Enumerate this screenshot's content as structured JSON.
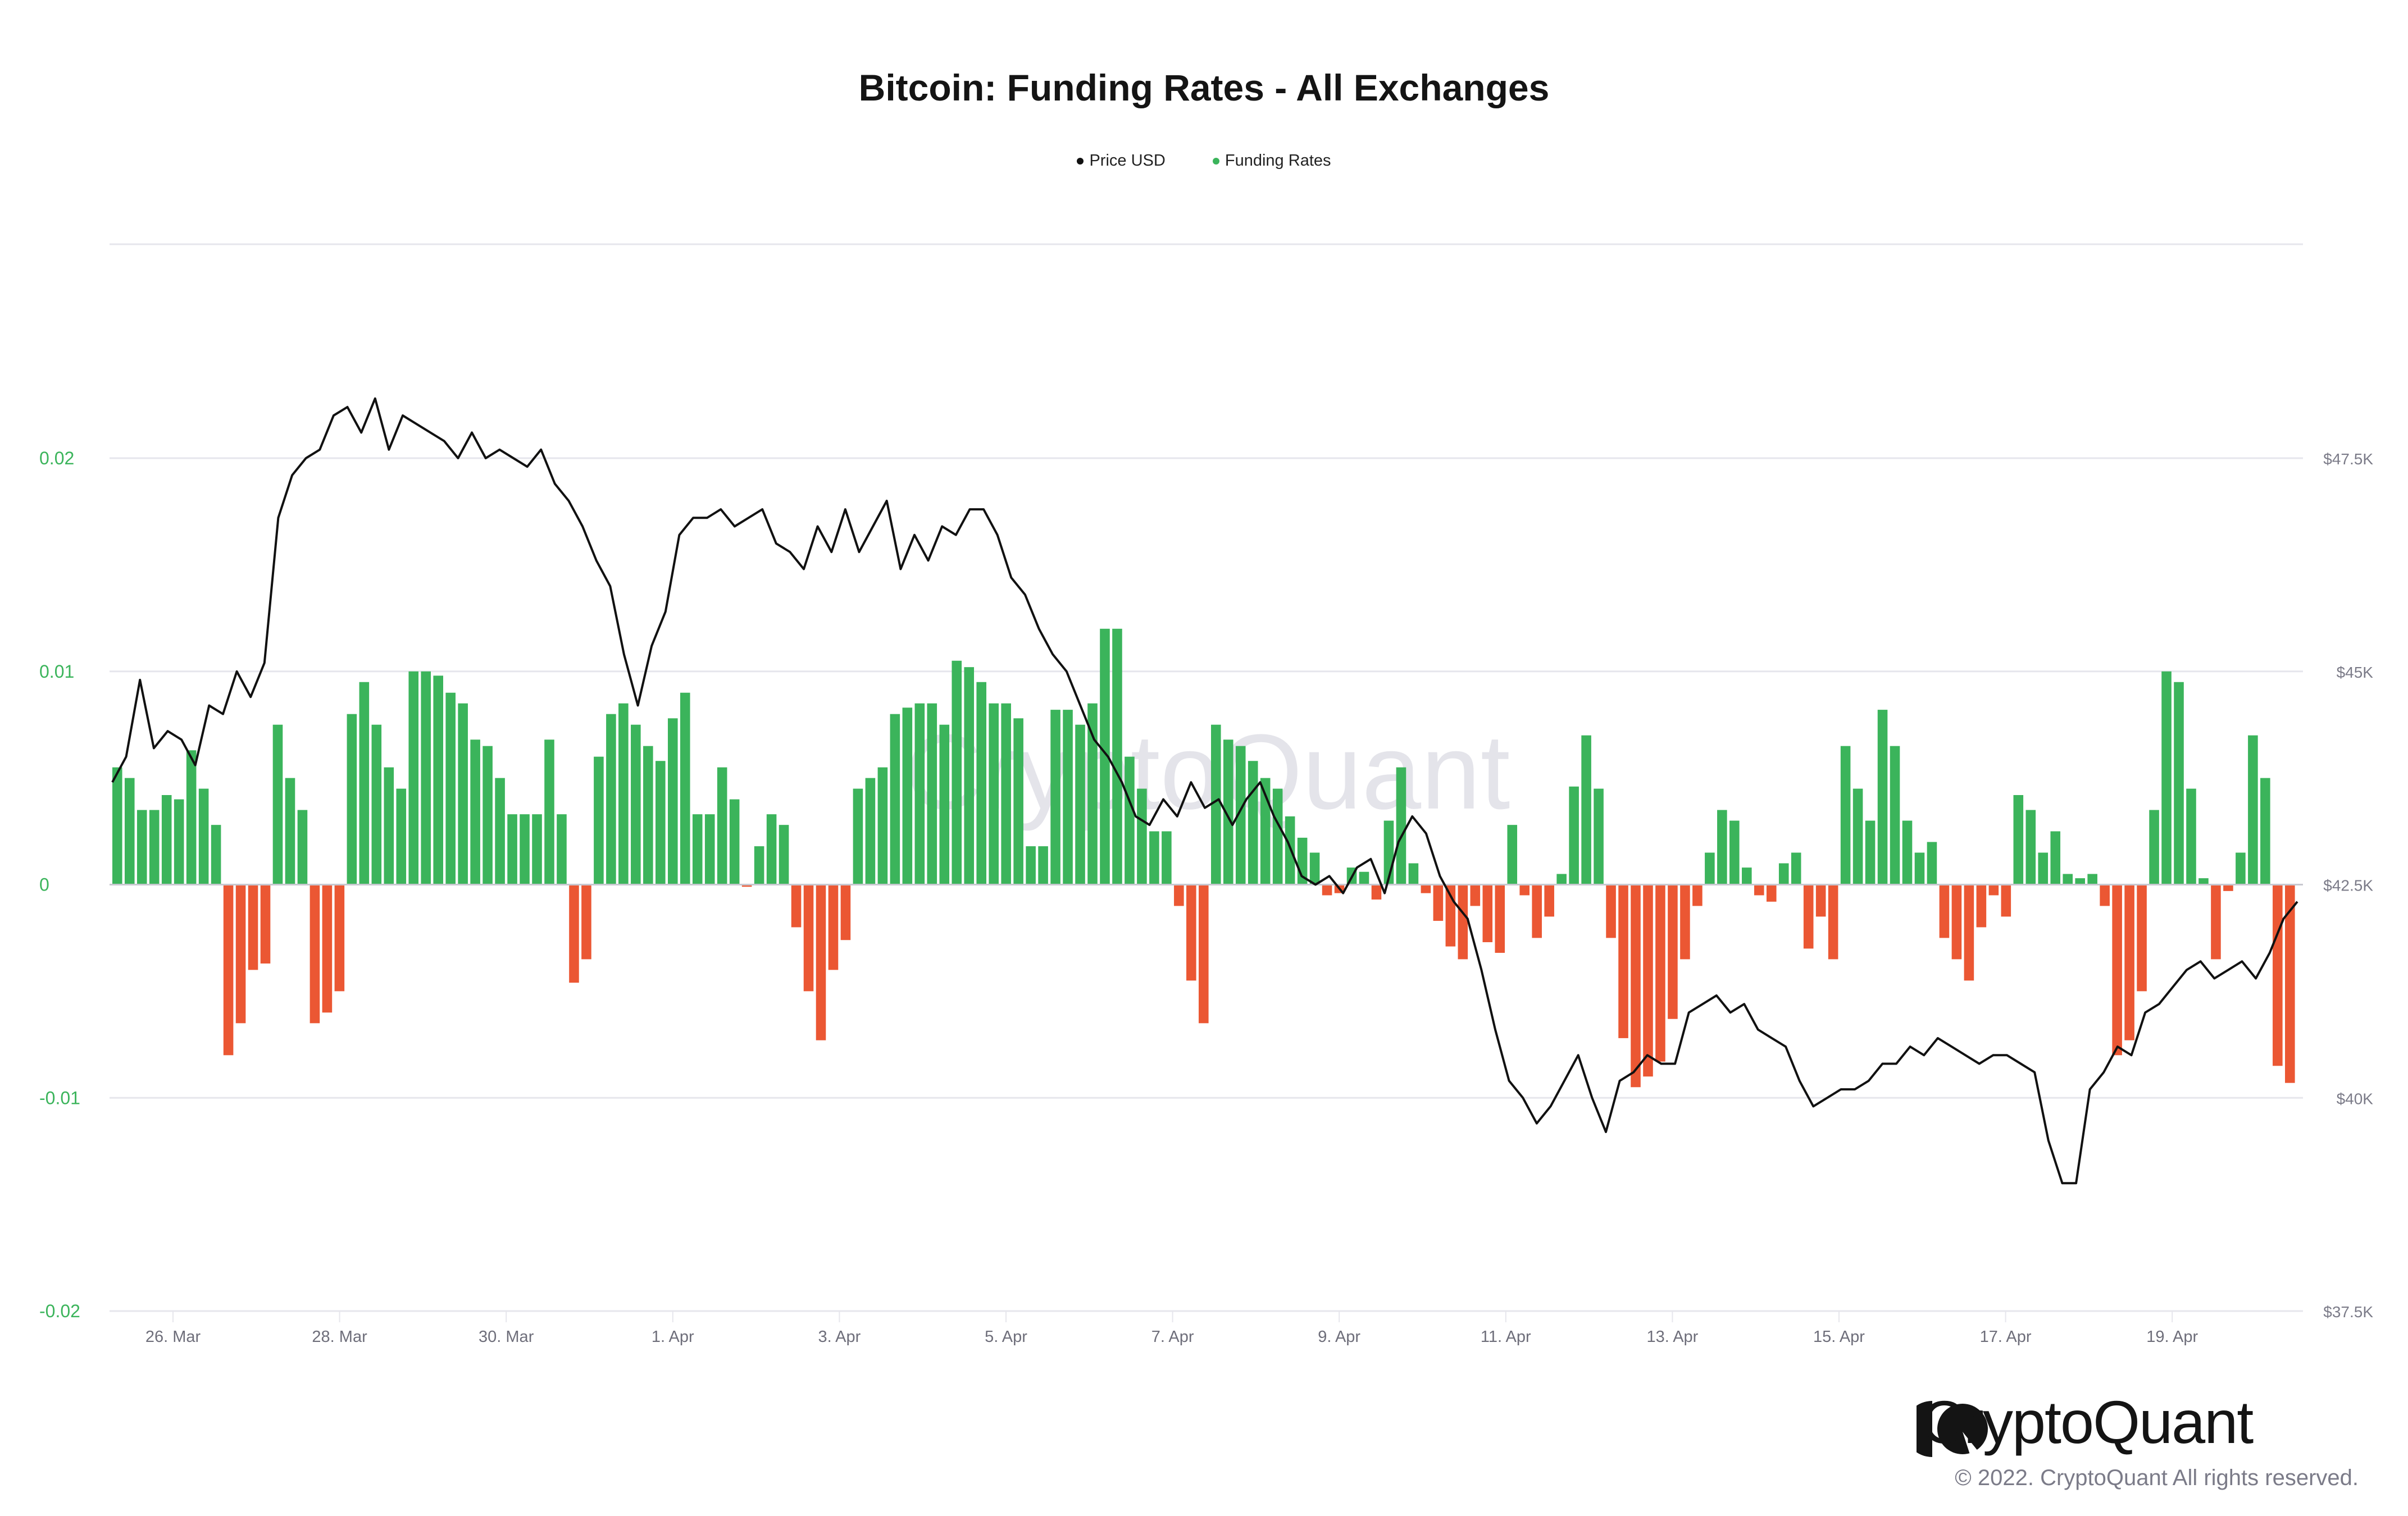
{
  "chart_data": {
    "type": "bar+line",
    "title": "Bitcoin: Funding Rates - All Exchanges",
    "legend": [
      {
        "name": "Price USD",
        "color": "#111111"
      },
      {
        "name": "Funding Rates",
        "color": "#3BB45B"
      }
    ],
    "legend_placement": "top-center",
    "x_tick_labels": [
      "26. Mar",
      "28. Mar",
      "30. Mar",
      "1. Apr",
      "3. Apr",
      "5. Apr",
      "7. Apr",
      "9. Apr",
      "11. Apr",
      "13. Apr",
      "15. Apr",
      "17. Apr",
      "19. Apr"
    ],
    "x_range_days": [
      -0.7,
      25.6
    ],
    "y_left": {
      "label": "Funding Rates",
      "ticks": [
        "0.02",
        "0.01",
        "0",
        "-0.01",
        "-0.02"
      ],
      "range": [
        -0.02,
        0.02
      ],
      "color": "#3BB45B"
    },
    "y_right": {
      "label": "Price USD",
      "ticks": [
        "$47.5K",
        "$45K",
        "$42.5K",
        "$40K",
        "$37.5K"
      ],
      "range": [
        37500,
        47500
      ],
      "color": "#7b7b88"
    },
    "grid": true,
    "colors": {
      "positive": "#3BB45B",
      "negative": "#EB5733",
      "price": "#111111",
      "grid": "#e6e6ec"
    },
    "funding_rates": [
      0.0055,
      0.005,
      0.0035,
      0.0035,
      0.0042,
      0.004,
      0.0063,
      0.0045,
      0.0028,
      -0.008,
      -0.0065,
      -0.004,
      -0.0037,
      0.0075,
      0.005,
      0.0035,
      -0.0065,
      -0.006,
      -0.005,
      0.008,
      0.0095,
      0.0075,
      0.0055,
      0.0045,
      0.01,
      0.01,
      0.0098,
      0.009,
      0.0085,
      0.0068,
      0.0065,
      0.005,
      0.0033,
      0.0033,
      0.0033,
      0.0068,
      0.0033,
      -0.0046,
      -0.0035,
      0.006,
      0.008,
      0.0085,
      0.0075,
      0.0065,
      0.0058,
      0.0078,
      0.009,
      0.0033,
      0.0033,
      0.0055,
      0.004,
      -0.0001,
      0.0018,
      0.0033,
      0.0028,
      -0.002,
      -0.005,
      -0.0073,
      -0.004,
      -0.0026,
      0.0045,
      0.005,
      0.0055,
      0.008,
      0.0083,
      0.0085,
      0.0085,
      0.0075,
      0.0105,
      0.0102,
      0.0095,
      0.0085,
      0.0085,
      0.0078,
      0.0018,
      0.0018,
      0.0082,
      0.0082,
      0.0075,
      0.0085,
      0.012,
      0.012,
      0.006,
      0.0045,
      0.0025,
      0.0025,
      -0.001,
      -0.0045,
      -0.0065,
      0.0075,
      0.0068,
      0.0065,
      0.0058,
      0.005,
      0.0045,
      0.0032,
      0.0022,
      0.0015,
      -0.0005,
      -0.0004,
      0.0008,
      0.0006,
      -0.0007,
      0.003,
      0.0055,
      0.001,
      -0.0004,
      -0.0017,
      -0.0029,
      -0.0035,
      -0.001,
      -0.0027,
      -0.0032,
      0.0028,
      -0.0005,
      -0.0025,
      -0.0015,
      0.0005,
      0.0046,
      0.007,
      0.0045,
      -0.0025,
      -0.0072,
      -0.0095,
      -0.009,
      -0.0083,
      -0.0063,
      -0.0035,
      -0.001,
      0.0015,
      0.0035,
      0.003,
      0.0008,
      -0.0005,
      -0.0008,
      0.001,
      0.0015,
      -0.003,
      -0.0015,
      -0.0035,
      0.0065,
      0.0045,
      0.003,
      0.0082,
      0.0065,
      0.003,
      0.0015,
      0.002,
      -0.0025,
      -0.0035,
      -0.0045,
      -0.002,
      -0.0005,
      -0.0015,
      0.0042,
      0.0035,
      0.0015,
      0.0025,
      0.0005,
      0.0003,
      0.0005,
      -0.001,
      -0.008,
      -0.0073,
      -0.005,
      0.0035,
      0.01,
      0.0095,
      0.0045,
      0.0003,
      -0.0035,
      -0.0003,
      0.0015,
      0.007,
      0.005,
      -0.0085,
      -0.0093
    ],
    "price_usd": [
      43700,
      44000,
      44900,
      44100,
      44300,
      44200,
      43900,
      44600,
      44500,
      45000,
      44700,
      45100,
      46800,
      47300,
      47500,
      47600,
      48000,
      48100,
      47800,
      48200,
      47600,
      48000,
      47900,
      47800,
      47700,
      47500,
      47800,
      47500,
      47600,
      47500,
      47400,
      47600,
      47200,
      47000,
      46700,
      46300,
      46000,
      45200,
      44600,
      45300,
      45700,
      46600,
      46800,
      46800,
      46900,
      46700,
      46800,
      46900,
      46500,
      46400,
      46200,
      46700,
      46400,
      46900,
      46400,
      46700,
      47000,
      46200,
      46600,
      46300,
      46700,
      46600,
      46900,
      46900,
      46600,
      46100,
      45900,
      45500,
      45200,
      45000,
      44600,
      44200,
      44000,
      43700,
      43300,
      43200,
      43500,
      43300,
      43700,
      43400,
      43500,
      43200,
      43500,
      43700,
      43300,
      43000,
      42600,
      42500,
      42600,
      42400,
      42700,
      42800,
      42400,
      43000,
      43300,
      43100,
      42600,
      42300,
      42100,
      41500,
      40800,
      40200,
      40000,
      39700,
      39900,
      40200,
      40500,
      40000,
      39600,
      40200,
      40300,
      40500,
      40400,
      40400,
      41000,
      41100,
      41200,
      41000,
      41100,
      40800,
      40700,
      40600,
      40200,
      39900,
      40000,
      40100,
      40100,
      40200,
      40400,
      40400,
      40600,
      40500,
      40700,
      40600,
      40500,
      40400,
      40500,
      40500,
      40400,
      40300,
      39500,
      39000,
      39000,
      40100,
      40300,
      40600,
      40500,
      41000,
      41100,
      41300,
      41500,
      41600,
      41400,
      41500,
      41600,
      41400,
      41700,
      42100,
      42300
    ]
  },
  "watermark": "CryptoQuant",
  "footer": {
    "logo_text": "CryptoQuant",
    "copyright": "© 2022. CryptoQuant All rights reserved."
  }
}
